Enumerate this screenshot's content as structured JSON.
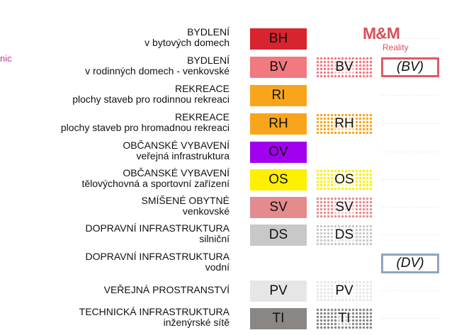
{
  "side_text": "nic",
  "logo": {
    "name": "M&M",
    "tagline": "Reality",
    "color": "#d8505a"
  },
  "rows": [
    {
      "title": "BYDLENÍ",
      "subtitle": "v bytových domech",
      "code": "BH",
      "swatch_color": "#d9232e",
      "pattern_code": "",
      "pattern_color": "",
      "outline_code": "",
      "outline_color": ""
    },
    {
      "title": "BYDLENÍ",
      "subtitle": "v rodinných domech - venkovské",
      "code": "BV",
      "swatch_color": "#f2797f",
      "pattern_code": "BV",
      "pattern_color": "#f2797f",
      "outline_code": "(BV)",
      "outline_color": "#e05a63"
    },
    {
      "title": "REKREACE",
      "subtitle": "plochy staveb pro rodinnou rekreaci",
      "code": "RI",
      "swatch_color": "#f9a51b",
      "pattern_code": "",
      "pattern_color": "",
      "outline_code": "",
      "outline_color": ""
    },
    {
      "title": "REKREACE",
      "subtitle": "plochy staveb pro hromadnou rekreaci",
      "code": "RH",
      "swatch_color": "#f9a51b",
      "pattern_code": "RH",
      "pattern_color": "#f9a51b",
      "outline_code": "",
      "outline_color": ""
    },
    {
      "title": "OBČANSKÉ VYBAVENÍ",
      "subtitle": "veřejná infrastruktura",
      "code": "OV",
      "swatch_color": "#a100ee",
      "pattern_code": "",
      "pattern_color": "",
      "outline_code": "",
      "outline_color": ""
    },
    {
      "title": "OBČANSKÉ VYBAVENÍ",
      "subtitle": "tělovýchovná a sportovní zařízení",
      "code": "OS",
      "swatch_color": "#ffef00",
      "pattern_code": "OS",
      "pattern_color": "#ffef00",
      "outline_code": "",
      "outline_color": ""
    },
    {
      "title": "SMÍŠENÉ OBYTNÉ",
      "subtitle": "venkovské",
      "code": "SV",
      "swatch_color": "#e48c8d",
      "pattern_code": "SV",
      "pattern_color": "#e48c8d",
      "outline_code": "",
      "outline_color": ""
    },
    {
      "title": "DOPRAVNÍ INFRASTRUKTURA",
      "subtitle": "silniční",
      "code": "DS",
      "swatch_color": "#c8c8c8",
      "pattern_code": "DS",
      "pattern_color": "#c8c8c8",
      "outline_code": "",
      "outline_color": ""
    },
    {
      "title": "DOPRAVNÍ INFRASTRUKTURA",
      "subtitle": "vodní",
      "code": "",
      "swatch_color": "",
      "pattern_code": "",
      "pattern_color": "",
      "outline_code": "(DV)",
      "outline_color": "#8da6c4"
    },
    {
      "title": "VEŘEJNÁ PROSTRANSTVÍ",
      "subtitle": "",
      "code": "PV",
      "swatch_color": "#e6e6e6",
      "pattern_code": "PV",
      "pattern_color": "#e6e6e6",
      "outline_code": "",
      "outline_color": ""
    },
    {
      "title": "TECHNICKÁ INFRASTRUKTURA",
      "subtitle": "inženýrské sítě",
      "code": "TI",
      "swatch_color": "#8a8683",
      "pattern_code": "TI",
      "pattern_color": "#8a8683",
      "outline_code": "",
      "outline_color": ""
    }
  ]
}
